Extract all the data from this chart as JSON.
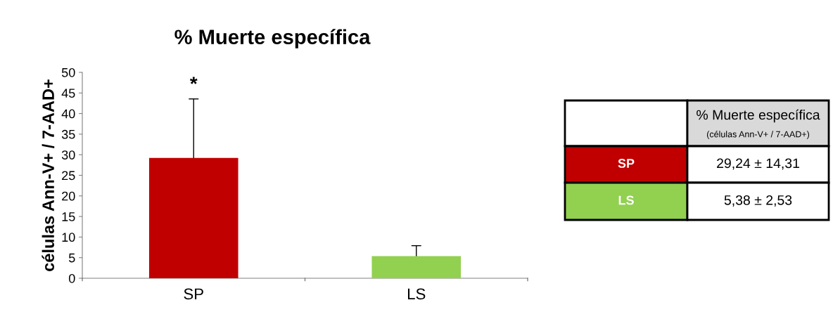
{
  "chart_data": {
    "type": "bar",
    "title": "% Muerte específica",
    "ylabel": "células Ann-V+ / 7-AAD+",
    "categories": [
      "SP",
      "LS"
    ],
    "values": [
      29.24,
      5.38
    ],
    "colors": [
      "#c00000",
      "#92d050"
    ],
    "errors": [
      14.31,
      2.53
    ],
    "annotations": [
      "*",
      "% Muerte específica",
      "(células Ann-V+ / 7-AAD+)",
      "29,24 ± 14,31",
      "5,38 ± 2,53"
    ],
    "ylim": [
      0,
      50
    ],
    "yticks": [
      0,
      5,
      10,
      15,
      20,
      25,
      30,
      35,
      40,
      45,
      50
    ],
    "grid": false,
    "legend": false
  }
}
